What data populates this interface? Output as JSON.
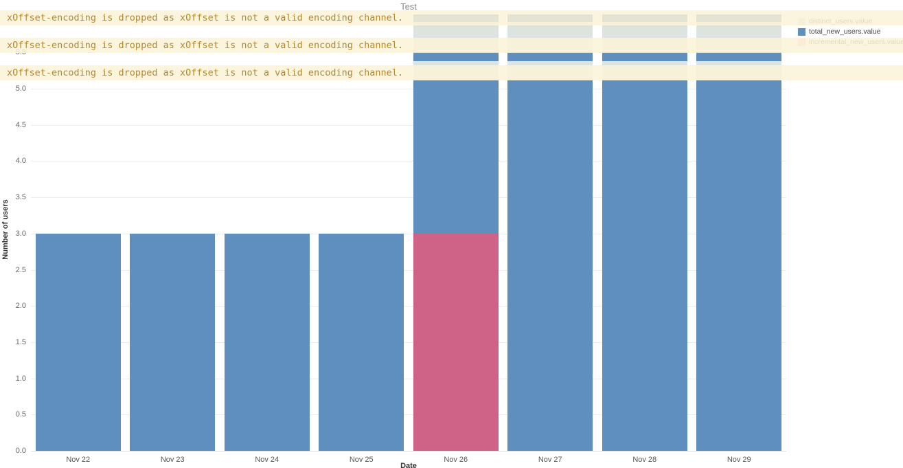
{
  "title": "Test",
  "warnings": [
    "xOffset-encoding is dropped as xOffset is not a valid encoding channel.",
    "xOffset-encoding is dropped as xOffset is not a valid encoding channel.",
    "xOffset-encoding is dropped as xOffset is not a valid encoding channel."
  ],
  "axes": {
    "x_title": "Date",
    "y_title": "Number of users"
  },
  "legend": {
    "items": [
      {
        "label": "distinct_users.value",
        "color": "#cfe3cf"
      },
      {
        "label": "total_new_users.value",
        "color": "#5e8fbe"
      },
      {
        "label": "incremental_new_users.value",
        "color": "#f2c0cd"
      }
    ]
  },
  "chart_data": {
    "type": "bar",
    "title": "Test",
    "xlabel": "Date",
    "ylabel": "Number of users",
    "categories": [
      "Nov 22",
      "Nov 23",
      "Nov 24",
      "Nov 25",
      "Nov 26",
      "Nov 27",
      "Nov 28",
      "Nov 29"
    ],
    "y_ticks": [
      0,
      0.5,
      1,
      1.5,
      2,
      2.5,
      3,
      3.5,
      4,
      4.5,
      5,
      5.5
    ],
    "ylim": [
      0,
      6.02
    ],
    "grid": true,
    "legend_position": "top-right",
    "series": [
      {
        "name": "total_new_users.value",
        "color": "#5e8fbe",
        "values": [
          3,
          3,
          3,
          3,
          5.12,
          5.12,
          5.12,
          5.12
        ]
      },
      {
        "name": "incremental_new_users.value",
        "color": "#ce6387",
        "values": [
          null,
          null,
          null,
          null,
          3,
          null,
          null,
          null
        ]
      },
      {
        "name": "distinct_users.value",
        "color": "#dde3df",
        "values": [
          null,
          null,
          null,
          null,
          6,
          6,
          6,
          6
        ]
      }
    ],
    "bars": [
      {
        "label": "Nov 22",
        "segments": [
          {
            "color": "#5e8fbe",
            "from": 0,
            "to": 3
          }
        ]
      },
      {
        "label": "Nov 23",
        "segments": [
          {
            "color": "#5e8fbe",
            "from": 0,
            "to": 3
          }
        ]
      },
      {
        "label": "Nov 24",
        "segments": [
          {
            "color": "#5e8fbe",
            "from": 0,
            "to": 3
          }
        ]
      },
      {
        "label": "Nov 25",
        "segments": [
          {
            "color": "#5e8fbe",
            "from": 0,
            "to": 3
          }
        ]
      },
      {
        "label": "Nov 26",
        "segments": [
          {
            "color": "#ce6387",
            "from": 0,
            "to": 3
          },
          {
            "color": "#5e8fbe",
            "from": 3,
            "to": 5.12
          },
          {
            "color": "#dde3df",
            "from": 5.12,
            "to": 5.38
          },
          {
            "color": "#5e8fbe",
            "from": 5.38,
            "to": 5.5
          },
          {
            "color": "#dde3df",
            "from": 5.5,
            "to": 5.92
          },
          {
            "color": "#5e8fbe",
            "from": 5.92,
            "to": 6.02
          }
        ]
      },
      {
        "label": "Nov 27",
        "segments": [
          {
            "color": "#5e8fbe",
            "from": 0,
            "to": 5.12
          },
          {
            "color": "#dde3df",
            "from": 5.12,
            "to": 5.38
          },
          {
            "color": "#5e8fbe",
            "from": 5.38,
            "to": 5.5
          },
          {
            "color": "#dde3df",
            "from": 5.5,
            "to": 5.92
          },
          {
            "color": "#5e8fbe",
            "from": 5.92,
            "to": 6.02
          }
        ]
      },
      {
        "label": "Nov 28",
        "segments": [
          {
            "color": "#5e8fbe",
            "from": 0,
            "to": 5.12
          },
          {
            "color": "#dde3df",
            "from": 5.12,
            "to": 5.38
          },
          {
            "color": "#5e8fbe",
            "from": 5.38,
            "to": 5.5
          },
          {
            "color": "#dde3df",
            "from": 5.5,
            "to": 5.92
          },
          {
            "color": "#5e8fbe",
            "from": 5.92,
            "to": 6.02
          }
        ]
      },
      {
        "label": "Nov 29",
        "segments": [
          {
            "color": "#5e8fbe",
            "from": 0,
            "to": 5.12
          },
          {
            "color": "#dde3df",
            "from": 5.12,
            "to": 5.38
          },
          {
            "color": "#5e8fbe",
            "from": 5.38,
            "to": 5.5
          },
          {
            "color": "#dde3df",
            "from": 5.5,
            "to": 5.92
          },
          {
            "color": "#5e8fbe",
            "from": 5.92,
            "to": 6.02
          }
        ]
      }
    ]
  }
}
